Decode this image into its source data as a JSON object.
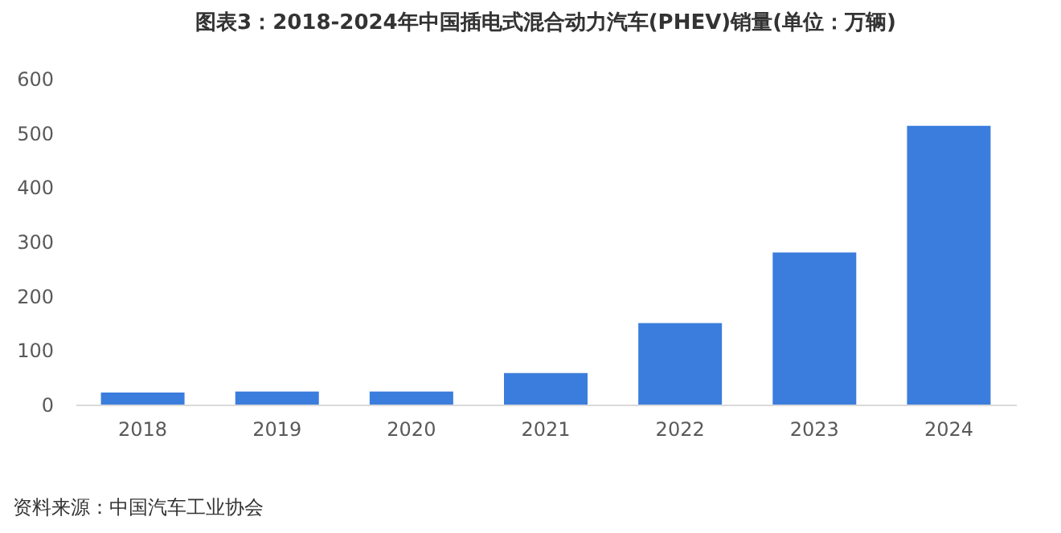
{
  "chart_data": {
    "type": "bar",
    "title": "图表3：2018-2024年中国插电式混合动力汽车(PHEV)销量(单位：万辆)",
    "categories": [
      "2018",
      "2019",
      "2020",
      "2021",
      "2022",
      "2023",
      "2024"
    ],
    "values": [
      22,
      24,
      24,
      58,
      150,
      280,
      513
    ],
    "color": "#3b7ddd",
    "ylim": [
      0,
      600
    ],
    "yticks": [
      0,
      100,
      200,
      300,
      400,
      500,
      600
    ],
    "grid": false,
    "annotations": [
      "资料来源：中国汽车工业协会"
    ]
  }
}
